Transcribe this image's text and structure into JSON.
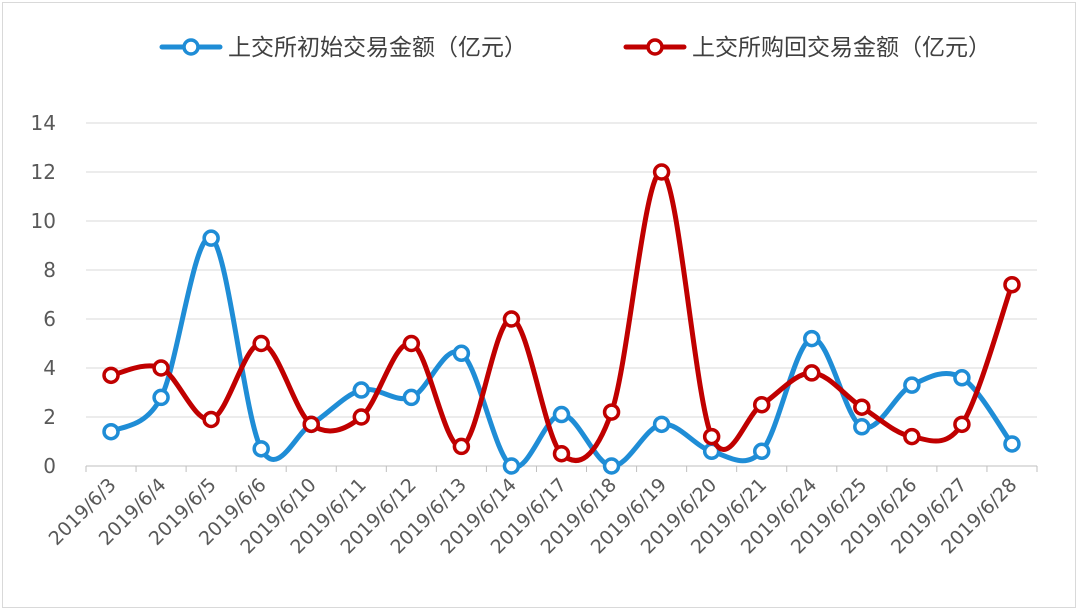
{
  "chart_data": {
    "type": "line",
    "smooth": true,
    "x": [
      "2019/6/3",
      "2019/6/4",
      "2019/6/5",
      "2019/6/6",
      "2019/6/10",
      "2019/6/11",
      "2019/6/12",
      "2019/6/13",
      "2019/6/14",
      "2019/6/17",
      "2019/6/18",
      "2019/6/19",
      "2019/6/20",
      "2019/6/21",
      "2019/6/24",
      "2019/6/25",
      "2019/6/26",
      "2019/6/27",
      "2019/6/28"
    ],
    "series": [
      {
        "name": "上交所初始交易金额（亿元）",
        "color": "#1f8dd6",
        "values": [
          1.4,
          2.8,
          9.3,
          0.7,
          1.7,
          3.1,
          2.8,
          4.6,
          0.0,
          2.1,
          0.0,
          1.7,
          0.6,
          0.6,
          5.2,
          1.6,
          3.3,
          3.6,
          0.9
        ]
      },
      {
        "name": "上交所购回交易金额（亿元）",
        "color": "#c00000",
        "values": [
          3.7,
          4.0,
          1.9,
          5.0,
          1.7,
          2.0,
          5.0,
          0.8,
          6.0,
          0.5,
          2.2,
          12.0,
          1.2,
          2.5,
          3.8,
          2.4,
          1.2,
          1.7,
          7.4
        ]
      }
    ],
    "ylim": [
      0,
      14
    ],
    "yticks": [
      "0",
      "2",
      "4",
      "6",
      "8",
      "10",
      "12",
      "14"
    ],
    "grid": true,
    "legend_position": "top"
  }
}
